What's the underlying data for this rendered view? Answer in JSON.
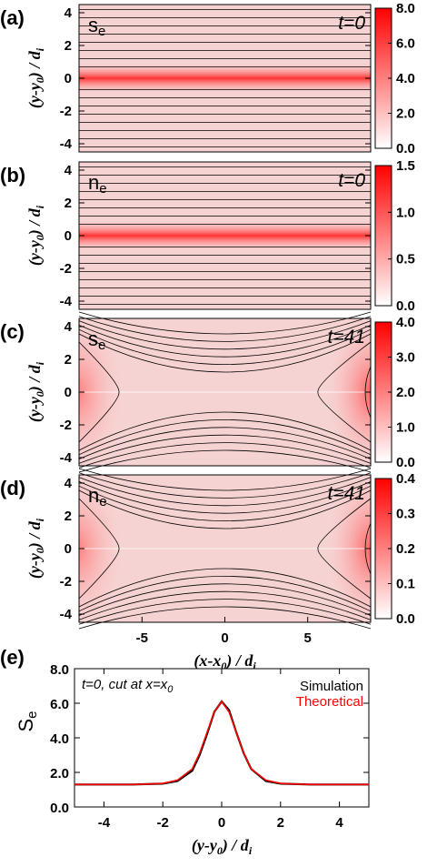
{
  "chart_data": [
    {
      "panel": "(a)",
      "type": "heatmap",
      "variable": "s",
      "variable_sub": "e",
      "time_label": "t=0",
      "structure": "current-sheet",
      "xlim": [
        -8.8,
        8.8
      ],
      "ylim": [
        -4.5,
        4.5
      ],
      "ylabel": "(y-y0) / di",
      "yticks": [
        "-4",
        "-2",
        "0",
        "2",
        "4"
      ],
      "colorbar": {
        "min": 0,
        "max": 8,
        "ticks": [
          "0.0",
          "2.0",
          "4.0",
          "6.0",
          "8.0"
        ],
        "colormap": "white-red"
      }
    },
    {
      "panel": "(b)",
      "type": "heatmap",
      "variable": "n",
      "variable_sub": "e",
      "time_label": "t=0",
      "structure": "current-sheet",
      "xlim": [
        -8.8,
        8.8
      ],
      "ylim": [
        -4.5,
        4.5
      ],
      "ylabel": "(y-y0) / di",
      "yticks": [
        "-4",
        "-2",
        "0",
        "2",
        "4"
      ],
      "colorbar": {
        "min": 0,
        "max": 1.5,
        "ticks": [
          "0.0",
          "0.5",
          "1.0",
          "1.5"
        ],
        "colormap": "white-red"
      }
    },
    {
      "panel": "(c)",
      "type": "heatmap",
      "variable": "s",
      "variable_sub": "e",
      "time_label": "t=41",
      "structure": "x-point",
      "xlim": [
        -8.8,
        8.8
      ],
      "ylim": [
        -4.5,
        4.5
      ],
      "ylabel": "(y-y0) / di",
      "yticks": [
        "-4",
        "-2",
        "0",
        "2",
        "4"
      ],
      "colorbar": {
        "min": 0,
        "max": 4,
        "ticks": [
          "0.0",
          "1.0",
          "2.0",
          "3.0",
          "4.0"
        ],
        "colormap": "white-red"
      }
    },
    {
      "panel": "(d)",
      "type": "heatmap",
      "variable": "n",
      "variable_sub": "e",
      "time_label": "t=41",
      "structure": "x-point",
      "xlim": [
        -8.8,
        8.8
      ],
      "ylim": [
        -4.5,
        4.5
      ],
      "ylabel": "(y-y0) / di",
      "yticks": [
        "-4",
        "-2",
        "0",
        "2",
        "4"
      ],
      "xlabel": "(x-x0) / di",
      "xticks": [
        "-5",
        "0",
        "5"
      ],
      "colorbar": {
        "min": 0,
        "max": 0.4,
        "ticks": [
          "0.0",
          "0.1",
          "0.2",
          "0.3",
          "0.4"
        ],
        "colormap": "white-red"
      }
    },
    {
      "panel": "(e)",
      "type": "line",
      "annotation": "t=0, cut at x=x",
      "annotation_sub": "0",
      "xlabel": "(y-y0) / di",
      "ylabel": "S",
      "ylabel_sub": "e",
      "xlim": [
        -5,
        5
      ],
      "ylim": [
        0,
        8
      ],
      "xticks": [
        "-4",
        "-2",
        "0",
        "2",
        "4"
      ],
      "yticks": [
        "0.0",
        "2.0",
        "4.0",
        "6.0",
        "8.0"
      ],
      "series": [
        {
          "name": "Simulation",
          "color": "#000000",
          "x": [
            -5,
            -4,
            -3,
            -2,
            -1.5,
            -1,
            -0.75,
            -0.5,
            -0.25,
            0,
            0.25,
            0.5,
            0.75,
            1,
            1.5,
            2,
            3,
            4,
            5
          ],
          "y": [
            1.3,
            1.3,
            1.3,
            1.35,
            1.5,
            2.1,
            3.0,
            4.2,
            5.5,
            6.1,
            5.6,
            4.3,
            3.1,
            2.2,
            1.5,
            1.35,
            1.3,
            1.3,
            1.3
          ]
        },
        {
          "name": "Theoretical",
          "color": "#ff0000",
          "x": [
            -5,
            -4,
            -3,
            -2,
            -1.5,
            -1,
            -0.75,
            -0.5,
            -0.25,
            0,
            0.25,
            0.5,
            0.75,
            1,
            1.5,
            2,
            3,
            4,
            5
          ],
          "y": [
            1.3,
            1.3,
            1.3,
            1.36,
            1.55,
            2.2,
            3.1,
            4.3,
            5.5,
            6.1,
            5.5,
            4.3,
            3.1,
            2.2,
            1.55,
            1.36,
            1.3,
            1.3,
            1.3
          ]
        }
      ]
    }
  ]
}
